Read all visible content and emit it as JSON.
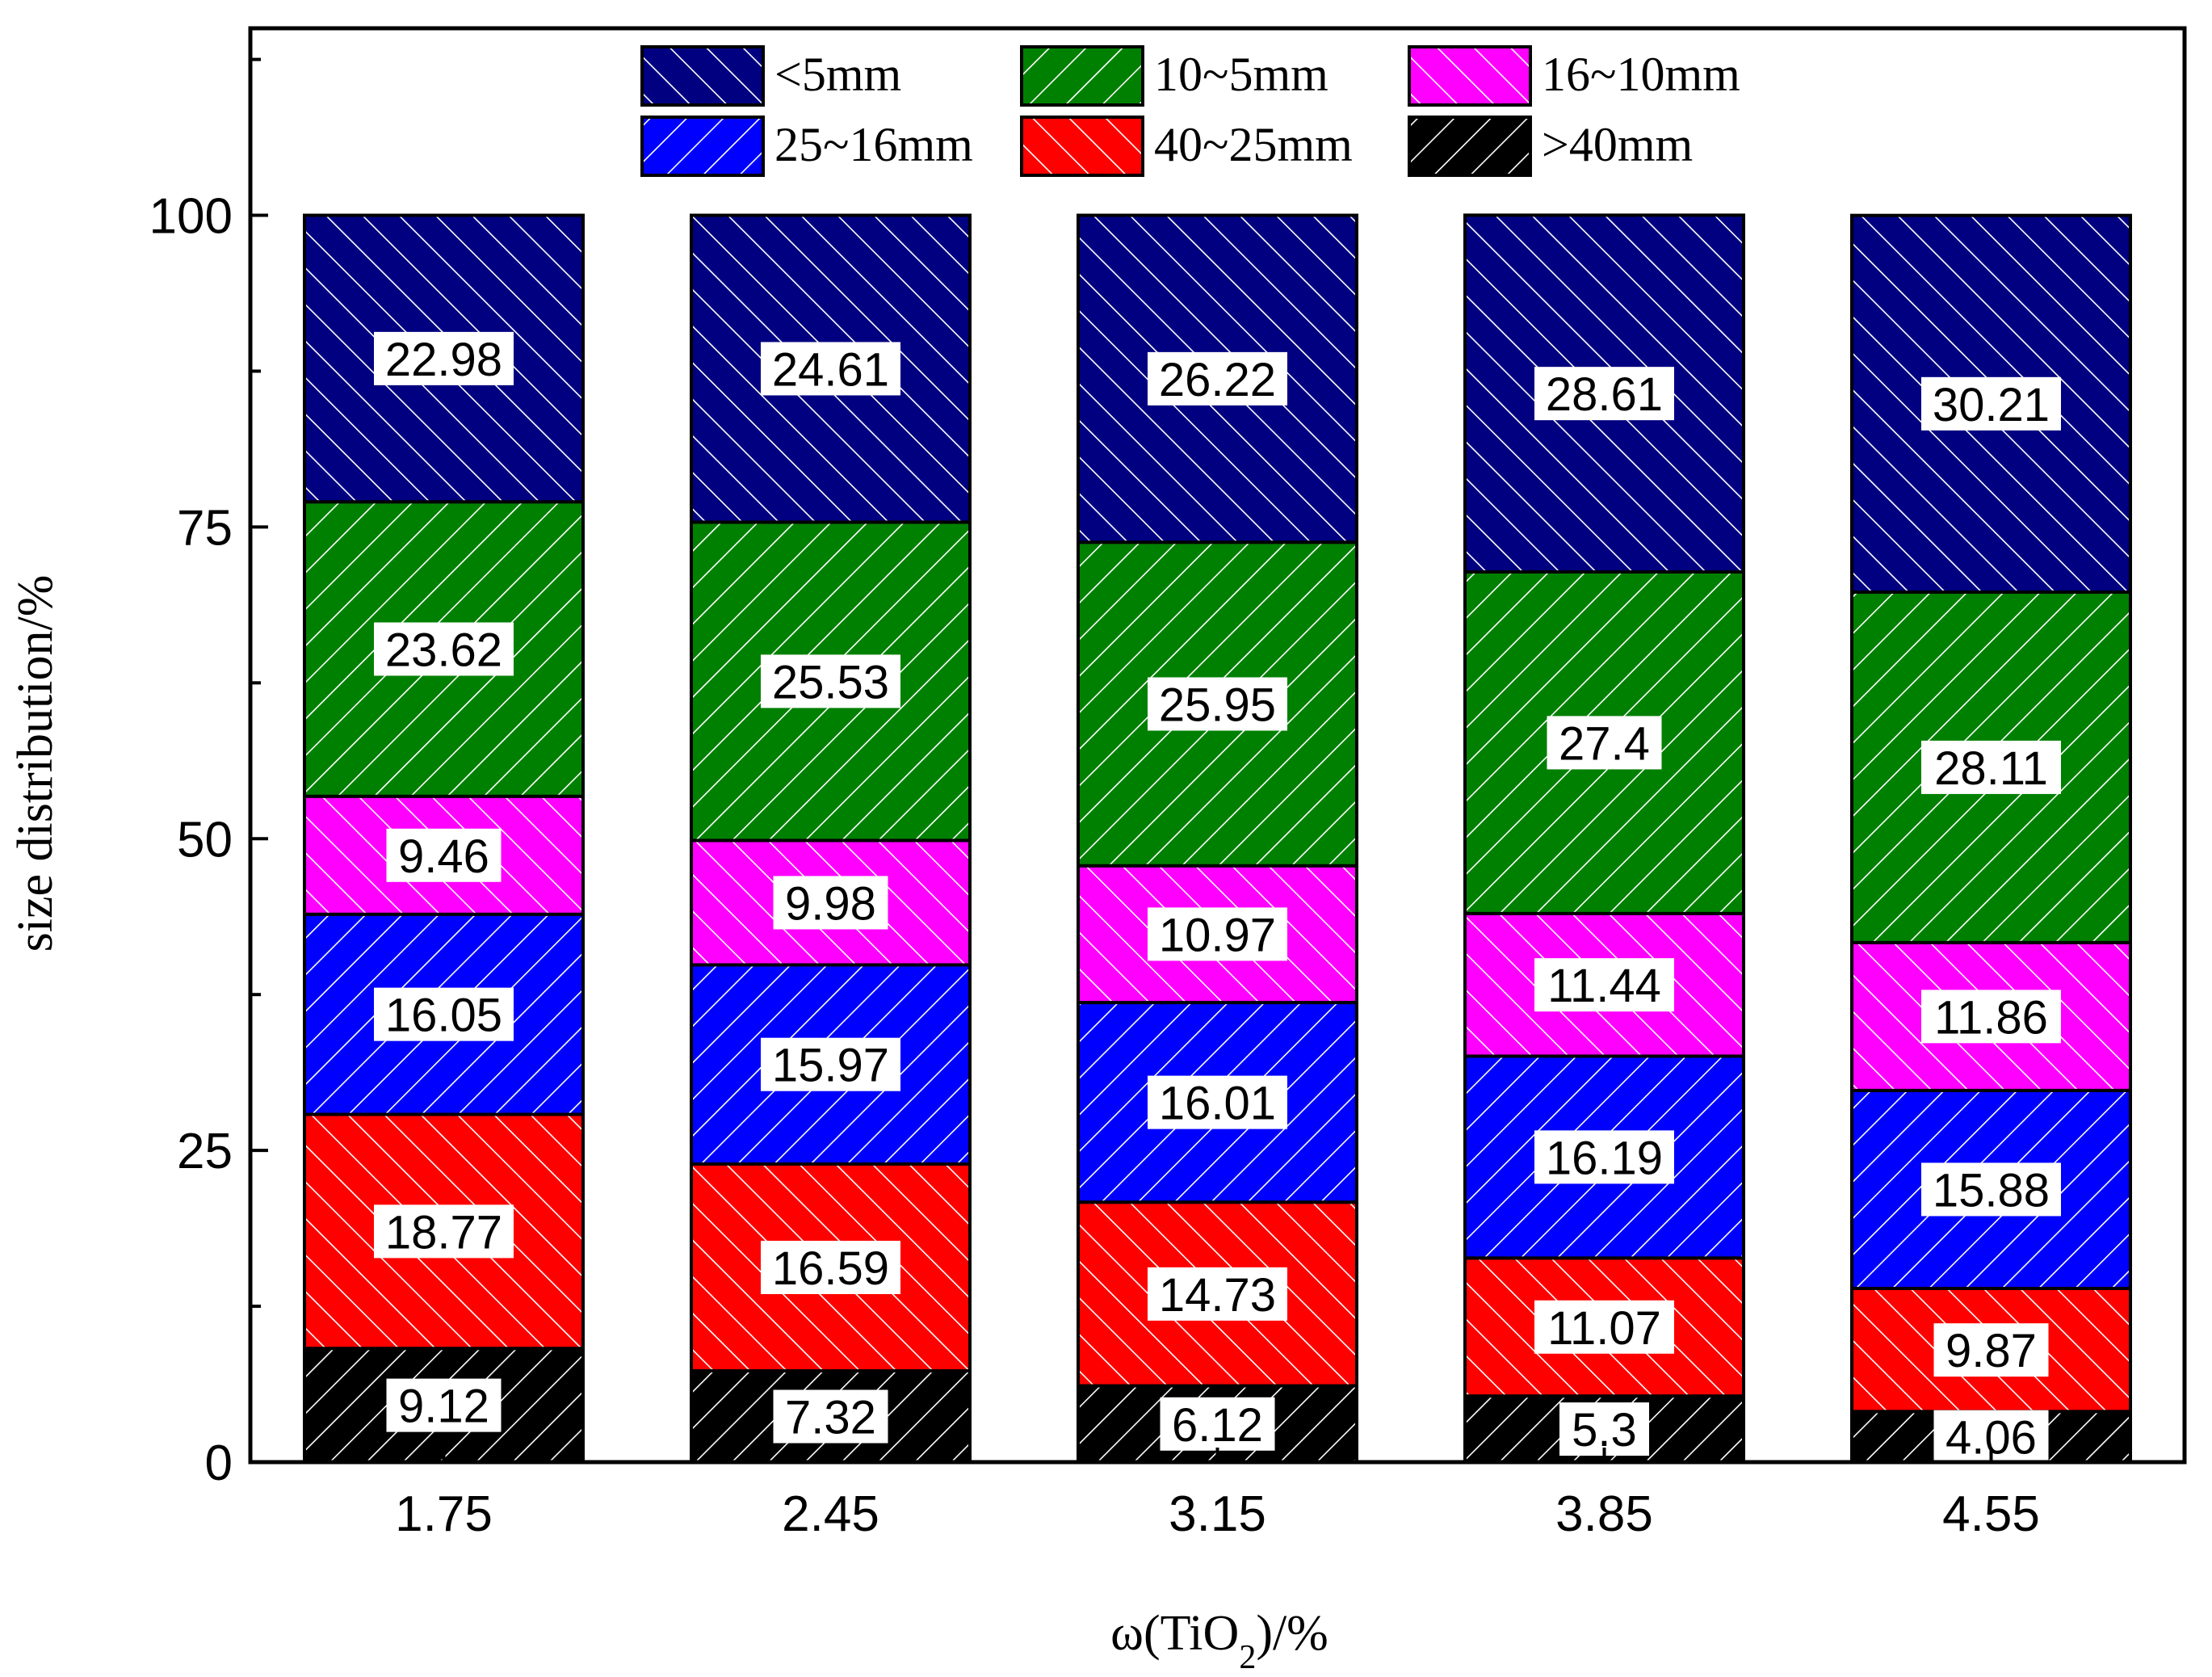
{
  "chart_data": {
    "type": "bar",
    "stacked": true,
    "title": "",
    "xlabel": "ω(TiO2)/%",
    "xlabel_parts": {
      "main": "ω(TiO",
      "subscript": "2",
      "suffix": ")/%"
    },
    "ylabel": "size distribution/%",
    "ylim": [
      0,
      115
    ],
    "yticks": [
      0,
      25,
      50,
      75,
      100
    ],
    "categories": [
      "1.75",
      "2.45",
      "3.15",
      "3.85",
      "4.55"
    ],
    "legend_position": "top",
    "series": [
      {
        "name": ">40mm",
        "color": "#000000",
        "hatch": "forward",
        "values": [
          9.12,
          7.32,
          6.12,
          5.3,
          4.06
        ]
      },
      {
        "name": "40~25mm",
        "color": "#ff0000",
        "hatch": "backward",
        "values": [
          18.77,
          16.59,
          14.73,
          11.07,
          9.87
        ]
      },
      {
        "name": "25~16mm",
        "color": "#0000ff",
        "hatch": "forward",
        "values": [
          16.05,
          15.97,
          16.01,
          16.19,
          15.88
        ]
      },
      {
        "name": "16~10mm",
        "color": "#ff00ff",
        "hatch": "backward",
        "values": [
          9.46,
          9.98,
          10.97,
          11.44,
          11.86
        ]
      },
      {
        "name": "10~5mm",
        "color": "#008000",
        "hatch": "forward",
        "values": [
          23.62,
          25.53,
          25.95,
          27.4,
          28.11
        ]
      },
      {
        "name": "<5mm",
        "color": "#000080",
        "hatch": "backward",
        "values": [
          22.98,
          24.61,
          26.22,
          28.61,
          30.21
        ]
      }
    ],
    "legend_order": [
      "<5mm",
      "10~5mm",
      "16~10mm",
      "25~16mm",
      "40~25mm",
      ">40mm"
    ]
  }
}
